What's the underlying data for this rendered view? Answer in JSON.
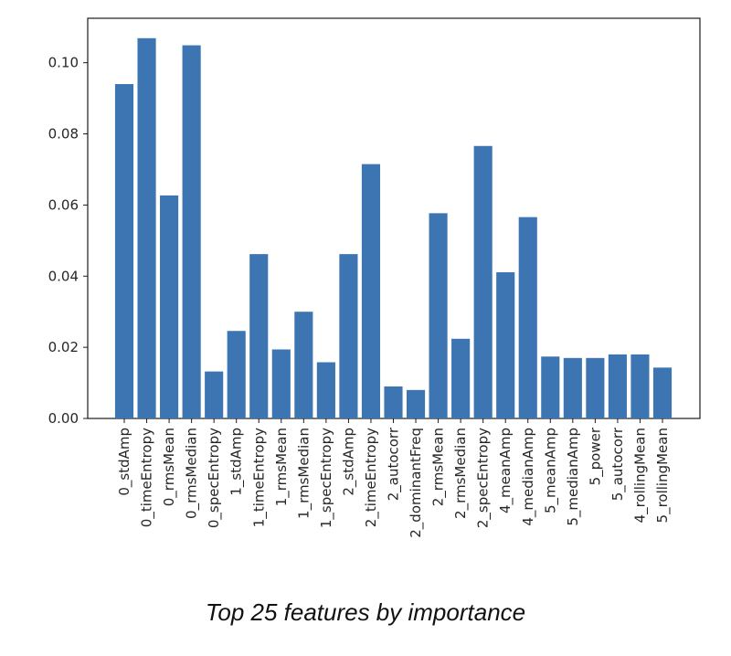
{
  "chart_data": {
    "type": "bar",
    "categories": [
      "0_stdAmp",
      "0_timeEntropy",
      "0_rmsMean",
      "0_rmsMedian",
      "0_specEntropy",
      "1_stdAmp",
      "1_timeEntropy",
      "1_rmsMean",
      "1_rmsMedian",
      "1_specEntropy",
      "2_stdAmp",
      "2_timeEntropy",
      "2_autocorr",
      "2_dominantFreq",
      "2_rmsMean",
      "2_rmsMedian",
      "2_specEntropy",
      "4_meanAmp",
      "4_medianAmp",
      "5_meanAmp",
      "5_medianAmp",
      "5_power",
      "5_autocorr",
      "4_rollingMean",
      "5_rollingMean"
    ],
    "values": [
      0.094,
      0.1069,
      0.0627,
      0.1049,
      0.0132,
      0.0246,
      0.0462,
      0.0194,
      0.03,
      0.0158,
      0.0462,
      0.0715,
      0.009,
      0.008,
      0.0577,
      0.0224,
      0.0766,
      0.0411,
      0.0566,
      0.0174,
      0.017,
      0.017,
      0.018,
      0.018,
      0.0143
    ],
    "ylim": [
      0,
      0.1125
    ],
    "yticks": [
      "0.00",
      "0.02",
      "0.04",
      "0.06",
      "0.08",
      "0.10"
    ],
    "title": "",
    "xlabel": "",
    "ylabel": "",
    "grid": false,
    "bar_color": "#3d75b3"
  },
  "caption": "Top 25 features by importance"
}
